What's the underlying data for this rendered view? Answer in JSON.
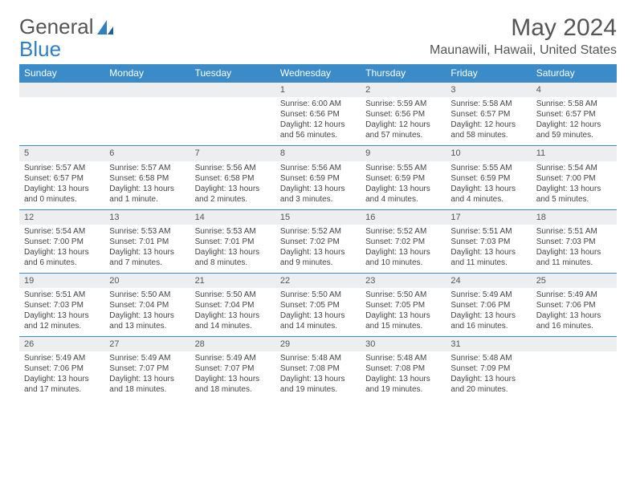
{
  "logo": {
    "text1": "General",
    "text2": "Blue"
  },
  "title": "May 2024",
  "location": "Maunawili, Hawaii, United States",
  "weekdays": [
    "Sunday",
    "Monday",
    "Tuesday",
    "Wednesday",
    "Thursday",
    "Friday",
    "Saturday"
  ],
  "colors": {
    "header_bg": "#3b8bc9",
    "daynum_bg": "#eceeef",
    "row_rule": "#3b8bc9"
  },
  "weeks": [
    [
      {
        "n": "",
        "sr": "",
        "ss": "",
        "dl": ""
      },
      {
        "n": "",
        "sr": "",
        "ss": "",
        "dl": ""
      },
      {
        "n": "",
        "sr": "",
        "ss": "",
        "dl": ""
      },
      {
        "n": "1",
        "sr": "6:00 AM",
        "ss": "6:56 PM",
        "dl": "12 hours and 56 minutes."
      },
      {
        "n": "2",
        "sr": "5:59 AM",
        "ss": "6:56 PM",
        "dl": "12 hours and 57 minutes."
      },
      {
        "n": "3",
        "sr": "5:58 AM",
        "ss": "6:57 PM",
        "dl": "12 hours and 58 minutes."
      },
      {
        "n": "4",
        "sr": "5:58 AM",
        "ss": "6:57 PM",
        "dl": "12 hours and 59 minutes."
      }
    ],
    [
      {
        "n": "5",
        "sr": "5:57 AM",
        "ss": "6:57 PM",
        "dl": "13 hours and 0 minutes."
      },
      {
        "n": "6",
        "sr": "5:57 AM",
        "ss": "6:58 PM",
        "dl": "13 hours and 1 minute."
      },
      {
        "n": "7",
        "sr": "5:56 AM",
        "ss": "6:58 PM",
        "dl": "13 hours and 2 minutes."
      },
      {
        "n": "8",
        "sr": "5:56 AM",
        "ss": "6:59 PM",
        "dl": "13 hours and 3 minutes."
      },
      {
        "n": "9",
        "sr": "5:55 AM",
        "ss": "6:59 PM",
        "dl": "13 hours and 4 minutes."
      },
      {
        "n": "10",
        "sr": "5:55 AM",
        "ss": "6:59 PM",
        "dl": "13 hours and 4 minutes."
      },
      {
        "n": "11",
        "sr": "5:54 AM",
        "ss": "7:00 PM",
        "dl": "13 hours and 5 minutes."
      }
    ],
    [
      {
        "n": "12",
        "sr": "5:54 AM",
        "ss": "7:00 PM",
        "dl": "13 hours and 6 minutes."
      },
      {
        "n": "13",
        "sr": "5:53 AM",
        "ss": "7:01 PM",
        "dl": "13 hours and 7 minutes."
      },
      {
        "n": "14",
        "sr": "5:53 AM",
        "ss": "7:01 PM",
        "dl": "13 hours and 8 minutes."
      },
      {
        "n": "15",
        "sr": "5:52 AM",
        "ss": "7:02 PM",
        "dl": "13 hours and 9 minutes."
      },
      {
        "n": "16",
        "sr": "5:52 AM",
        "ss": "7:02 PM",
        "dl": "13 hours and 10 minutes."
      },
      {
        "n": "17",
        "sr": "5:51 AM",
        "ss": "7:03 PM",
        "dl": "13 hours and 11 minutes."
      },
      {
        "n": "18",
        "sr": "5:51 AM",
        "ss": "7:03 PM",
        "dl": "13 hours and 11 minutes."
      }
    ],
    [
      {
        "n": "19",
        "sr": "5:51 AM",
        "ss": "7:03 PM",
        "dl": "13 hours and 12 minutes."
      },
      {
        "n": "20",
        "sr": "5:50 AM",
        "ss": "7:04 PM",
        "dl": "13 hours and 13 minutes."
      },
      {
        "n": "21",
        "sr": "5:50 AM",
        "ss": "7:04 PM",
        "dl": "13 hours and 14 minutes."
      },
      {
        "n": "22",
        "sr": "5:50 AM",
        "ss": "7:05 PM",
        "dl": "13 hours and 14 minutes."
      },
      {
        "n": "23",
        "sr": "5:50 AM",
        "ss": "7:05 PM",
        "dl": "13 hours and 15 minutes."
      },
      {
        "n": "24",
        "sr": "5:49 AM",
        "ss": "7:06 PM",
        "dl": "13 hours and 16 minutes."
      },
      {
        "n": "25",
        "sr": "5:49 AM",
        "ss": "7:06 PM",
        "dl": "13 hours and 16 minutes."
      }
    ],
    [
      {
        "n": "26",
        "sr": "5:49 AM",
        "ss": "7:06 PM",
        "dl": "13 hours and 17 minutes."
      },
      {
        "n": "27",
        "sr": "5:49 AM",
        "ss": "7:07 PM",
        "dl": "13 hours and 18 minutes."
      },
      {
        "n": "28",
        "sr": "5:49 AM",
        "ss": "7:07 PM",
        "dl": "13 hours and 18 minutes."
      },
      {
        "n": "29",
        "sr": "5:48 AM",
        "ss": "7:08 PM",
        "dl": "13 hours and 19 minutes."
      },
      {
        "n": "30",
        "sr": "5:48 AM",
        "ss": "7:08 PM",
        "dl": "13 hours and 19 minutes."
      },
      {
        "n": "31",
        "sr": "5:48 AM",
        "ss": "7:09 PM",
        "dl": "13 hours and 20 minutes."
      },
      {
        "n": "",
        "sr": "",
        "ss": "",
        "dl": ""
      }
    ]
  ],
  "labels": {
    "sunrise": "Sunrise:",
    "sunset": "Sunset:",
    "daylight": "Daylight:"
  }
}
